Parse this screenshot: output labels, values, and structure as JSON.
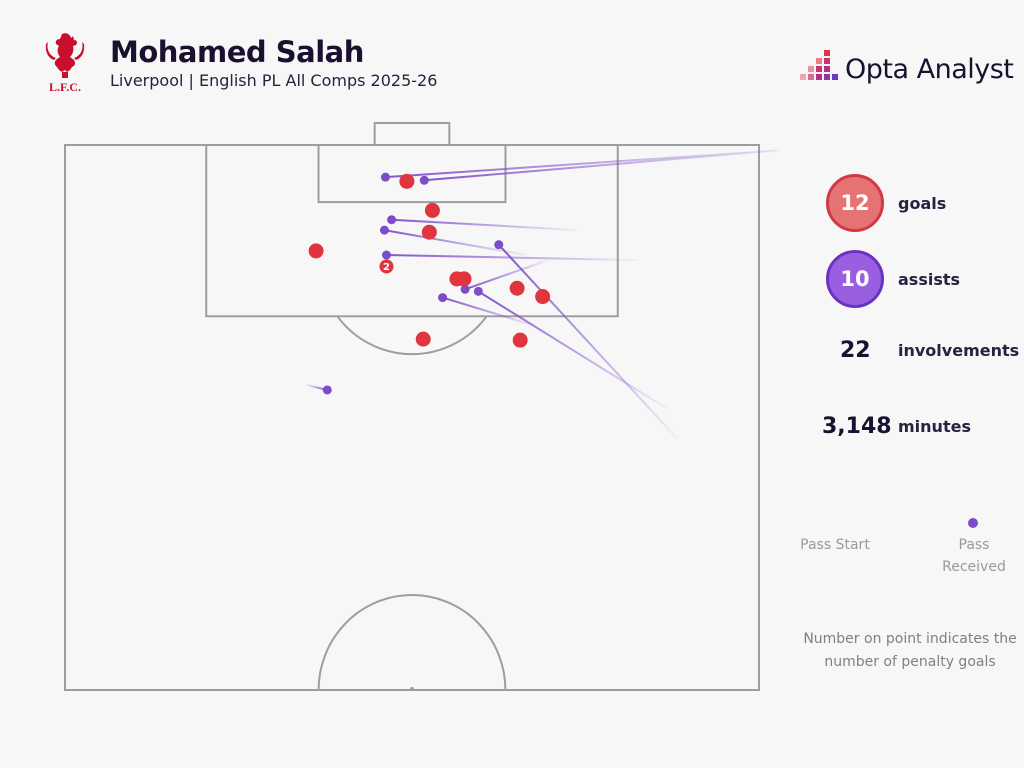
{
  "header": {
    "title": "Mohamed Salah",
    "subtitle": "Liverpool | English PL All Comps 2025-26",
    "club_logo_text": "L.F.C.",
    "brand": "Opta Analyst"
  },
  "colors": {
    "goal": "#e0343e",
    "assist": "#7d4cc9",
    "goal_badge": "#e57373",
    "assist_badge": "#9a5fe0",
    "pitch_lines": "#9e9e9e",
    "background": "#f7f7f7"
  },
  "stats": {
    "goals": {
      "value": "12",
      "label": "goals"
    },
    "assists": {
      "value": "10",
      "label": "assists"
    },
    "involvements": {
      "value": "22",
      "label": "involvements"
    },
    "minutes": {
      "value": "3,148",
      "label": "minutes"
    }
  },
  "legend": {
    "pass_start": "Pass Start",
    "pass_received": "Pass Received",
    "note": "Number on point indicates the number of penalty goals"
  },
  "chart_data": {
    "type": "scatter",
    "pitch": {
      "length_m": 105,
      "width_m": 68,
      "view": "attacking half"
    },
    "goals": [
      {
        "x": 33.5,
        "y": 101.5,
        "penalties": 0
      },
      {
        "x": 36.0,
        "y": 98.7,
        "penalties": 0
      },
      {
        "x": 35.7,
        "y": 96.6,
        "penalties": 0
      },
      {
        "x": 24.6,
        "y": 94.8,
        "penalties": 0
      },
      {
        "x": 31.5,
        "y": 93.3,
        "penalties": 2
      },
      {
        "x": 38.4,
        "y": 92.1,
        "penalties": 0
      },
      {
        "x": 39.1,
        "y": 92.1,
        "penalties": 0
      },
      {
        "x": 44.3,
        "y": 91.2,
        "penalties": 0
      },
      {
        "x": 46.8,
        "y": 90.4,
        "penalties": 0
      },
      {
        "x": 35.1,
        "y": 86.3,
        "penalties": 0
      },
      {
        "x": 44.6,
        "y": 86.2,
        "penalties": 0
      }
    ],
    "assists": [
      {
        "start_x": 70.0,
        "start_y": 104.5,
        "end_x": 31.4,
        "end_y": 101.9
      },
      {
        "start_x": 70.0,
        "start_y": 104.5,
        "end_x": 35.2,
        "end_y": 101.6
      },
      {
        "start_x": 50.2,
        "start_y": 96.8,
        "end_x": 32.0,
        "end_y": 97.8
      },
      {
        "start_x": 45.2,
        "start_y": 94.4,
        "end_x": 31.3,
        "end_y": 96.8
      },
      {
        "start_x": 56.2,
        "start_y": 93.9,
        "end_x": 31.5,
        "end_y": 94.4
      },
      {
        "start_x": 47.3,
        "start_y": 93.9,
        "end_x": 39.2,
        "end_y": 91.1
      },
      {
        "start_x": 46.0,
        "start_y": 87.6,
        "end_x": 37.0,
        "end_y": 90.3
      },
      {
        "start_x": 59.0,
        "start_y": 79.6,
        "end_x": 40.5,
        "end_y": 90.9
      },
      {
        "start_x": 60.0,
        "start_y": 76.7,
        "end_x": 42.5,
        "end_y": 95.4
      },
      {
        "start_x": 23.6,
        "start_y": 81.9,
        "end_x": 25.7,
        "end_y": 81.4
      }
    ]
  }
}
